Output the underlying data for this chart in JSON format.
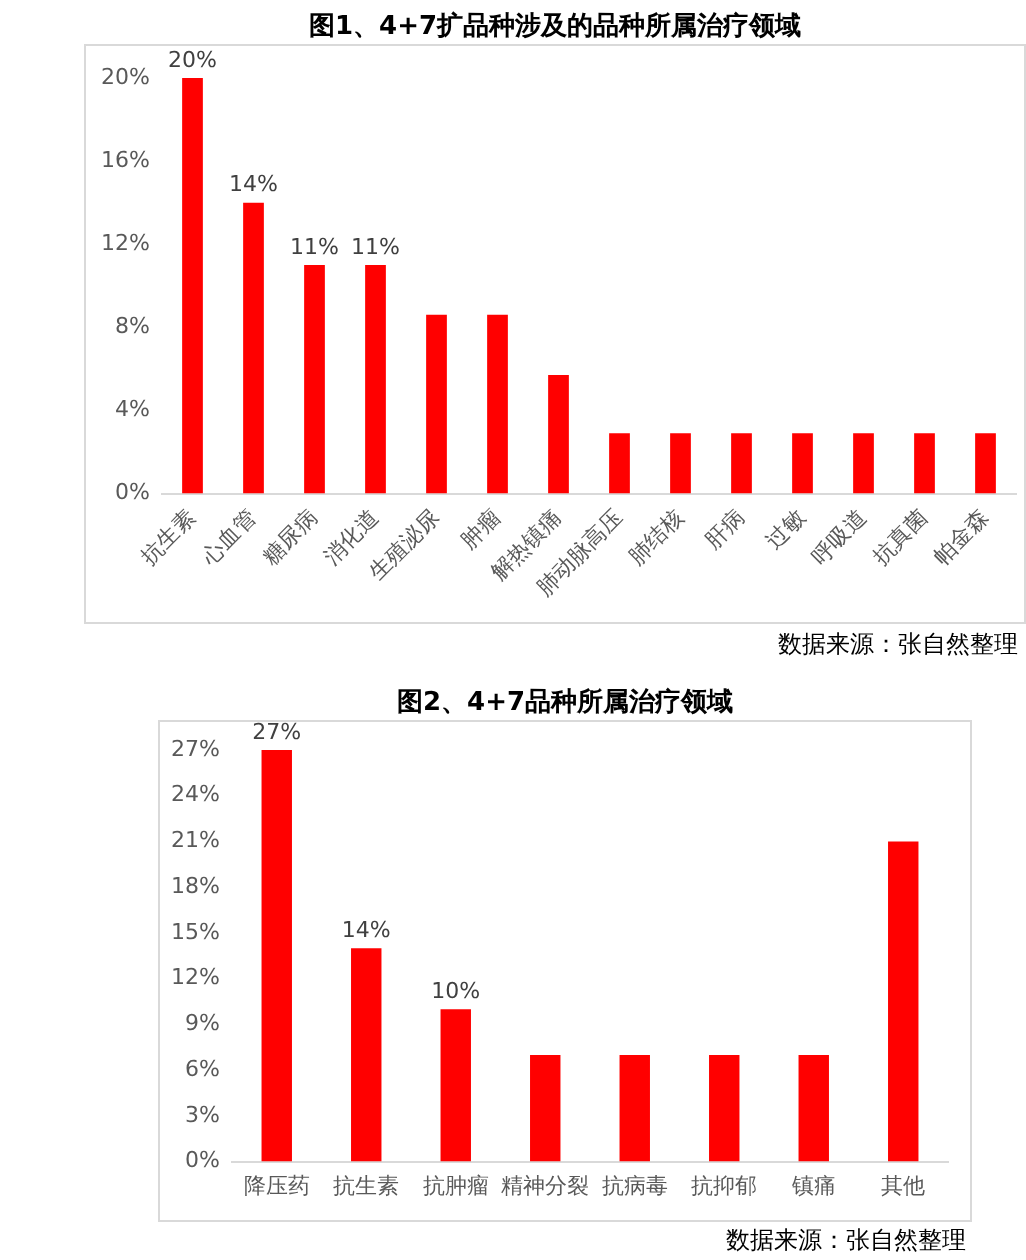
{
  "chart_data": [
    {
      "type": "bar",
      "title": "图1、4+7扩品种涉及的品种所属治疗领域",
      "categories": [
        "抗生素",
        "心血管",
        "糖尿病",
        "消化道",
        "生殖泌尿",
        "肿瘤",
        "解热镇痛",
        "肺动脉高压",
        "肺结核",
        "肝病",
        "过敏",
        "呼吸道",
        "抗真菌",
        "帕金森"
      ],
      "values": [
        20,
        14,
        11,
        11,
        8.6,
        8.6,
        5.7,
        2.9,
        2.9,
        2.9,
        2.9,
        2.9,
        2.9,
        2.9
      ],
      "value_labels": [
        "20%",
        "14%",
        "11%",
        "11%",
        null,
        null,
        null,
        null,
        null,
        null,
        null,
        null,
        null,
        null
      ],
      "color": "#ff0000",
      "ylim": [
        0,
        20
      ],
      "yticks": [
        {
          "value": 0,
          "label": "0%"
        },
        {
          "value": 4,
          "label": "4%"
        },
        {
          "value": 8,
          "label": "8%"
        },
        {
          "value": 12,
          "label": "12%"
        },
        {
          "value": 16,
          "label": "16%"
        },
        {
          "value": 20,
          "label": "20%"
        }
      ],
      "annotations": [
        "数据来源：张自然整理"
      ]
    },
    {
      "type": "bar",
      "title": "图2、4+7品种所属治疗领域",
      "categories": [
        "降压药",
        "抗生素",
        "抗肿瘤",
        "精神分裂",
        "抗病毒",
        "抗抑郁",
        "镇痛",
        "其他"
      ],
      "values": [
        27,
        14,
        10,
        7,
        7,
        7,
        7,
        21
      ],
      "value_labels": [
        "27%",
        "14%",
        "10%",
        null,
        null,
        null,
        null,
        null
      ],
      "color": "#ff0000",
      "ylim": [
        0,
        27
      ],
      "yticks": [
        {
          "value": 0,
          "label": "0%"
        },
        {
          "value": 3,
          "label": "3%"
        },
        {
          "value": 6,
          "label": "6%"
        },
        {
          "value": 9,
          "label": "9%"
        },
        {
          "value": 12,
          "label": "12%"
        },
        {
          "value": 15,
          "label": "15%"
        },
        {
          "value": 18,
          "label": "18%"
        },
        {
          "value": 21,
          "label": "21%"
        },
        {
          "value": 24,
          "label": "24%"
        },
        {
          "value": 27,
          "label": "27%"
        }
      ],
      "annotations": [
        "数据来源：张自然整理"
      ]
    }
  ]
}
